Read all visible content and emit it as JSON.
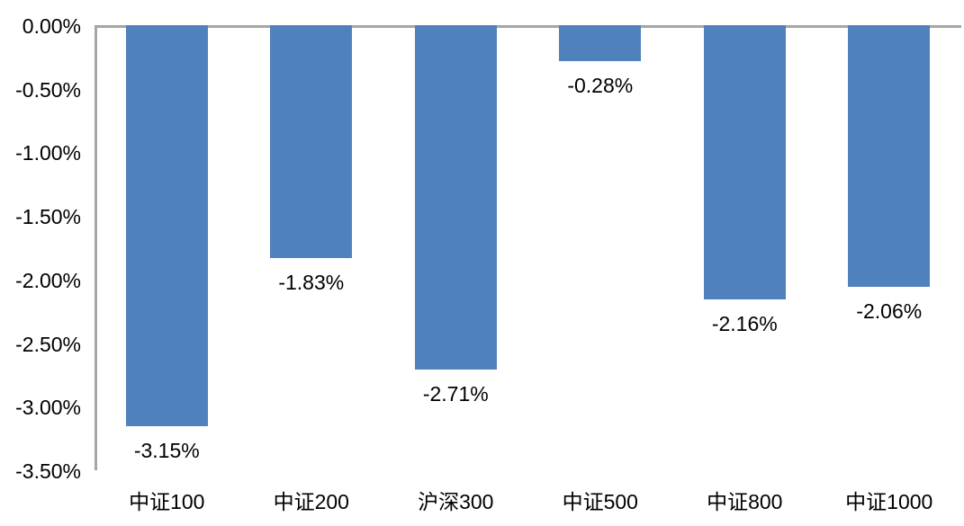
{
  "chart_data": {
    "type": "bar",
    "title": "",
    "xlabel": "",
    "ylabel": "",
    "categories": [
      "中证100",
      "中证200",
      "沪深300",
      "中证500",
      "中证800",
      "中证1000"
    ],
    "values": [
      -3.15,
      -1.83,
      -2.71,
      -0.28,
      -2.16,
      -2.06
    ],
    "data_labels": [
      "-3.15%",
      "-1.83%",
      "-2.71%",
      "-0.28%",
      "-2.16%",
      "-2.06%"
    ],
    "y_tick_labels": [
      "0.00%",
      "-0.50%",
      "-1.00%",
      "-1.50%",
      "-2.00%",
      "-2.50%",
      "-3.00%",
      "-3.50%"
    ],
    "y_tick_values": [
      0,
      -0.5,
      -1.0,
      -1.5,
      -2.0,
      -2.5,
      -3.0,
      -3.5
    ],
    "ylim": [
      -3.5,
      0
    ],
    "grid": false,
    "legend": false,
    "data_label_position": "outside-end-below-bar",
    "colors": {
      "bar": "#4F81BD",
      "axis": "#A6A6A6",
      "text": "#000000",
      "background": "#FFFFFF"
    }
  }
}
